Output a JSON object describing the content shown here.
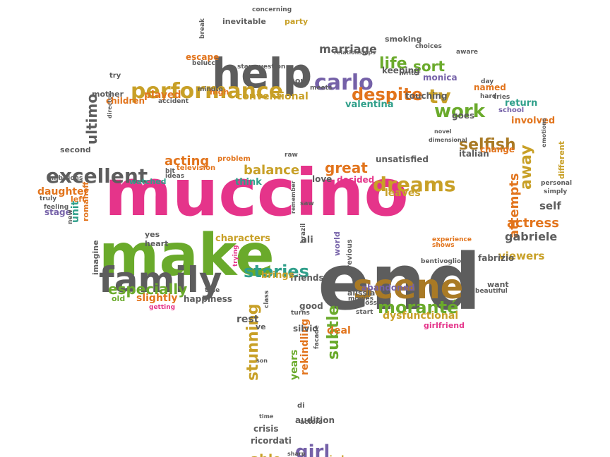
{
  "colors": {
    "magenta": "#e5348a",
    "green": "#6aaa2b",
    "gray": "#5d5d5d",
    "orange": "#e2741c",
    "mustard": "#c8a027",
    "brown": "#a97a25",
    "teal": "#2f9f8a",
    "purple": "#7561a8",
    "yellow": "#e8b923"
  },
  "words": [
    {
      "t": "muccino",
      "c": "magenta"
    },
    {
      "t": "make",
      "c": "green"
    },
    {
      "t": "end",
      "c": "gray"
    },
    {
      "t": "help",
      "c": "gray"
    },
    {
      "t": "family",
      "c": "gray"
    },
    {
      "t": "scene",
      "c": "brown"
    },
    {
      "t": "performance",
      "c": "mustard"
    },
    {
      "t": "carlo",
      "c": "purple"
    },
    {
      "t": "excellent",
      "c": "gray"
    },
    {
      "t": "dreams",
      "c": "mustard"
    },
    {
      "t": "stories",
      "c": "teal"
    },
    {
      "t": "moranté",
      "c": "green"
    },
    {
      "t": "work",
      "c": "green"
    },
    {
      "t": "selfish",
      "c": "brown"
    },
    {
      "t": "despite",
      "c": "orange"
    },
    {
      "t": "tv",
      "c": "mustard"
    },
    {
      "t": "life",
      "c": "green"
    },
    {
      "t": "sort",
      "c": "green"
    },
    {
      "t": "marriage",
      "c": "gray"
    },
    {
      "t": "especially",
      "c": "green"
    },
    {
      "t": "balance",
      "c": "mustard"
    },
    {
      "t": "great",
      "c": "orange"
    },
    {
      "t": "acting",
      "c": "orange"
    },
    {
      "t": "subtle",
      "c": "green"
    },
    {
      "t": "stunning",
      "c": "mustard"
    },
    {
      "t": "attempts",
      "c": "orange"
    },
    {
      "t": "away",
      "c": "mustard"
    },
    {
      "t": "actress",
      "c": "orange"
    },
    {
      "t": "gabriele",
      "c": "gray"
    },
    {
      "t": "viewers",
      "c": "mustard"
    },
    {
      "t": "girl",
      "c": "purple"
    },
    {
      "t": "ultimo",
      "c": "gray"
    },
    {
      "t": "conventional",
      "c": "mustard"
    },
    {
      "t": "valentina",
      "c": "teal"
    },
    {
      "t": "played",
      "c": "orange"
    },
    {
      "t": "dysfunctional",
      "c": "mustard"
    },
    {
      "t": "abandoned",
      "c": "purple"
    },
    {
      "t": "self",
      "c": "gray"
    },
    {
      "t": "characters",
      "c": "mustard"
    },
    {
      "t": "slightly",
      "c": "orange"
    },
    {
      "t": "happiness",
      "c": "gray"
    },
    {
      "t": "daughter",
      "c": "orange"
    },
    {
      "t": "unit",
      "c": "teal"
    },
    {
      "t": "deal",
      "c": "orange"
    },
    {
      "t": "rekindling",
      "c": "orange"
    },
    {
      "t": "years",
      "c": "green"
    },
    {
      "t": "able",
      "c": "mustard"
    },
    {
      "t": "married",
      "c": "mustard"
    },
    {
      "t": "crisis",
      "c": "gray"
    },
    {
      "t": "ricordati",
      "c": "gray"
    },
    {
      "t": "audition",
      "c": "gray"
    },
    {
      "t": "silvio",
      "c": "gray"
    },
    {
      "t": "good",
      "c": "gray"
    },
    {
      "t": "rest",
      "c": "gray"
    },
    {
      "t": "ve",
      "c": "gray"
    },
    {
      "t": "di",
      "c": "gray"
    },
    {
      "t": "friends",
      "c": "gray"
    },
    {
      "t": "brings",
      "c": "mustard"
    },
    {
      "t": "ali",
      "c": "gray"
    },
    {
      "t": "love",
      "c": "gray"
    },
    {
      "t": "decided",
      "c": "magenta"
    },
    {
      "t": "leaves",
      "c": "mustard"
    },
    {
      "t": "unsatisfied",
      "c": "gray"
    },
    {
      "t": "italian",
      "c": "gray"
    },
    {
      "t": "fabrizio",
      "c": "gray"
    },
    {
      "t": "want",
      "c": "gray"
    },
    {
      "t": "alissia",
      "c": "gray"
    },
    {
      "t": "girlfriend",
      "c": "magenta"
    },
    {
      "t": "school",
      "c": "purple"
    },
    {
      "t": "involved",
      "c": "orange"
    },
    {
      "t": "return",
      "c": "teal"
    },
    {
      "t": "goes",
      "c": "gray"
    },
    {
      "t": "change",
      "c": "orange"
    },
    {
      "t": "different",
      "c": "mustard"
    },
    {
      "t": "touching",
      "c": "gray"
    },
    {
      "t": "keeping",
      "c": "gray"
    },
    {
      "t": "monica",
      "c": "purple"
    },
    {
      "t": "named",
      "c": "orange"
    },
    {
      "t": "smoking",
      "c": "gray"
    },
    {
      "t": "inevitable",
      "c": "gray"
    },
    {
      "t": "party",
      "c": "mustard"
    },
    {
      "t": "escape",
      "c": "orange"
    },
    {
      "t": "hour",
      "c": "gray"
    },
    {
      "t": "children",
      "c": "orange"
    },
    {
      "t": "mother",
      "c": "gray"
    },
    {
      "t": "second",
      "c": "gray"
    },
    {
      "t": "watched",
      "c": "teal"
    },
    {
      "t": "television",
      "c": "orange"
    },
    {
      "t": "problem",
      "c": "orange"
    },
    {
      "t": "think",
      "c": "teal"
    },
    {
      "t": "yes",
      "c": "gray"
    },
    {
      "t": "heart",
      "c": "gray"
    },
    {
      "t": "romanoff",
      "c": "orange"
    },
    {
      "t": "stage",
      "c": "purple"
    },
    {
      "t": "left",
      "c": "orange"
    },
    {
      "t": "old",
      "c": "green"
    },
    {
      "t": "imagine",
      "c": "gray"
    },
    {
      "t": "high",
      "c": "orange"
    },
    {
      "t": "world",
      "c": "purple"
    },
    {
      "t": "previous",
      "c": "gray"
    },
    {
      "t": "movies",
      "c": "gray"
    },
    {
      "t": "start",
      "c": "gray"
    },
    {
      "t": "actors",
      "c": "gray"
    },
    {
      "t": "turns",
      "c": "gray"
    },
    {
      "t": "facade",
      "c": "gray"
    },
    {
      "t": "try",
      "c": "gray"
    },
    {
      "t": "getting",
      "c": "magenta"
    },
    {
      "t": "trying",
      "c": "magenta"
    },
    {
      "t": "true",
      "c": "gray"
    },
    {
      "t": "saw",
      "c": "gray"
    },
    {
      "t": "feeling",
      "c": "gray"
    },
    {
      "t": "truly",
      "c": "gray"
    },
    {
      "t": "new",
      "c": "gray"
    },
    {
      "t": "bit",
      "c": "gray"
    },
    {
      "t": "ideas",
      "c": "gray"
    },
    {
      "t": "ambitions",
      "c": "gray"
    },
    {
      "t": "raw",
      "c": "gray"
    },
    {
      "t": "remember",
      "c": "gray"
    },
    {
      "t": "brazil",
      "c": "gray"
    },
    {
      "t": "experience",
      "c": "orange"
    },
    {
      "t": "shows",
      "c": "orange"
    },
    {
      "t": "bentivoglio",
      "c": "gray"
    },
    {
      "t": "beautiful",
      "c": "gray"
    },
    {
      "t": "loss",
      "c": "gray"
    },
    {
      "t": "class",
      "c": "gray"
    },
    {
      "t": "time",
      "c": "gray"
    },
    {
      "t": "son",
      "c": "gray"
    },
    {
      "t": "sharp",
      "c": "gray"
    },
    {
      "t": "choices",
      "c": "gray"
    },
    {
      "t": "aware",
      "c": "gray"
    },
    {
      "t": "writer",
      "c": "gray"
    },
    {
      "t": "relationships",
      "c": "gray"
    },
    {
      "t": "concerning",
      "c": "gray"
    },
    {
      "t": "break",
      "c": "gray"
    },
    {
      "t": "belucci",
      "c": "gray"
    },
    {
      "t": "star",
      "c": "gray"
    },
    {
      "t": "question",
      "c": "gray"
    },
    {
      "t": "day",
      "c": "gray"
    },
    {
      "t": "hard",
      "c": "gray"
    },
    {
      "t": "tries",
      "c": "gray"
    },
    {
      "t": "minute",
      "c": "gray"
    },
    {
      "t": "accident",
      "c": "gray"
    },
    {
      "t": "director",
      "c": "gray"
    },
    {
      "t": "personal",
      "c": "gray"
    },
    {
      "t": "simply",
      "c": "gray"
    },
    {
      "t": "emotions",
      "c": "gray"
    },
    {
      "t": "dimensional",
      "c": "gray"
    },
    {
      "t": "novel",
      "c": "gray"
    },
    {
      "t": "meets",
      "c": "gray"
    }
  ]
}
